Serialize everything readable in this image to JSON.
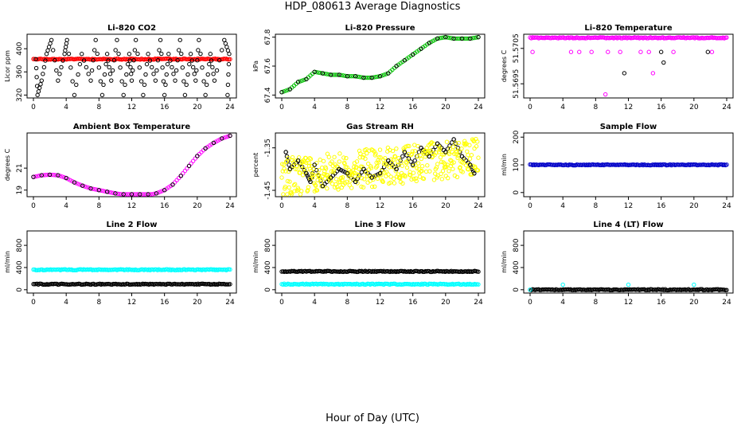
{
  "figure": {
    "title": "HDP_080613  Average Diagnostics",
    "xlabel": "Hour of Day (UTC)"
  },
  "colors": {
    "red": "#ff0000",
    "green": "#00c000",
    "magenta": "#ff00ff",
    "yellow": "#ffff00",
    "blue": "#0000c8",
    "cyan": "#00ffff",
    "black": "#000000"
  },
  "chart_data": [
    {
      "type": "scatter",
      "title": "Li-820 CO2",
      "ylabel": "Licor ppm",
      "xlim": [
        0,
        24
      ],
      "ylim": [
        315,
        425
      ],
      "xticks": [
        "0",
        "4",
        "8",
        "12",
        "16",
        "20",
        "24"
      ],
      "yticks": [
        "320",
        "360",
        "400"
      ],
      "series": [
        {
          "name": "co2",
          "color": "red",
          "values": [
            382
          ]
        },
        {
          "name": "samples",
          "color": "black",
          "values": [
            [
              0.3,
              382
            ],
            [
              0.5,
              320
            ],
            [
              1,
              345
            ],
            [
              1.6,
              391
            ],
            [
              2.2,
              415
            ],
            [
              3.0,
              345
            ],
            [
              3.8,
              391
            ],
            [
              4.1,
              415
            ],
            [
              5,
              320
            ],
            [
              5.9,
              391
            ],
            [
              7,
              345
            ],
            [
              7.6,
              415
            ],
            [
              8.4,
              320
            ],
            [
              9,
              391
            ],
            [
              9.5,
              345
            ],
            [
              10.2,
              415
            ],
            [
              11,
              320
            ],
            [
              11.7,
              391
            ],
            [
              12,
              345
            ],
            [
              12.5,
              415
            ],
            [
              13.4,
              320
            ],
            [
              14,
              391
            ],
            [
              14.9,
              345
            ],
            [
              15.5,
              415
            ],
            [
              16,
              320
            ],
            [
              16.5,
              391
            ],
            [
              17.3,
              345
            ],
            [
              17.9,
              415
            ],
            [
              18.5,
              320
            ],
            [
              19.2,
              391
            ],
            [
              19.8,
              345
            ],
            [
              20.2,
              415
            ],
            [
              21,
              320
            ],
            [
              21.6,
              391
            ],
            [
              22.1,
              345
            ],
            [
              23.3,
              415
            ],
            [
              23.9,
              391
            ],
            [
              23.7,
              320
            ]
          ]
        }
      ]
    },
    {
      "type": "scatter",
      "title": "Li-820 Pressure",
      "ylabel": "kPa",
      "xlim": [
        0,
        24
      ],
      "ylim": [
        67.38,
        67.82
      ],
      "xticks": [
        "0",
        "4",
        "8",
        "12",
        "16",
        "20",
        "24"
      ],
      "yticks": [
        "67.4",
        "67.6",
        "67.8"
      ],
      "series": [
        {
          "name": "pressure",
          "color": "green",
          "values": [
            [
              0,
              67.42
            ],
            [
              1,
              67.44
            ],
            [
              2,
              67.49
            ],
            [
              3,
              67.51
            ],
            [
              4,
              67.56
            ],
            [
              5,
              67.55
            ],
            [
              6,
              67.54
            ],
            [
              7,
              67.54
            ],
            [
              8,
              67.53
            ],
            [
              9,
              67.53
            ],
            [
              10,
              67.52
            ],
            [
              11,
              67.52
            ],
            [
              12,
              67.53
            ],
            [
              13,
              67.55
            ],
            [
              14,
              67.6
            ],
            [
              15,
              67.64
            ],
            [
              16,
              67.68
            ],
            [
              17,
              67.72
            ],
            [
              18,
              67.76
            ],
            [
              19,
              67.79
            ],
            [
              20,
              67.8
            ],
            [
              21,
              67.79
            ],
            [
              22,
              67.79
            ],
            [
              23,
              67.79
            ],
            [
              24,
              67.8
            ]
          ]
        }
      ]
    },
    {
      "type": "scatter",
      "title": "Li-820 Temperature",
      "ylabel": "degrees C",
      "xlim": [
        0,
        24
      ],
      "ylim": [
        51.5691,
        51.5709
      ],
      "xticks": [
        "0",
        "4",
        "8",
        "12",
        "16",
        "20",
        "24"
      ],
      "yticks": [
        "51.5695",
        "51.5705"
      ],
      "series": [
        {
          "name": "temp_high",
          "color": "magenta",
          "values": [
            51.5708
          ]
        },
        {
          "name": "temp_mid",
          "color": "magenta",
          "values": [
            [
              0.3,
              51.5704
            ],
            [
              5,
              51.5704
            ],
            [
              6,
              51.5704
            ],
            [
              7.5,
              51.5704
            ],
            [
              9.5,
              51.5704
            ],
            [
              11,
              51.5704
            ],
            [
              13.5,
              51.5704
            ],
            [
              14.5,
              51.5704
            ],
            [
              17.5,
              51.5704
            ],
            [
              22.2,
              51.5704
            ],
            [
              15,
              51.5698
            ],
            [
              9.2,
              51.5692
            ]
          ]
        },
        {
          "name": "samples",
          "color": "black",
          "values": [
            [
              11.5,
              51.5698
            ],
            [
              16,
              51.5704
            ],
            [
              16.3,
              51.5701
            ],
            [
              21.7,
              51.5704
            ]
          ]
        }
      ]
    },
    {
      "type": "scatter",
      "title": "Ambient Box Temperature",
      "ylabel": "degrees C",
      "xlim": [
        0,
        24
      ],
      "ylim": [
        18.4,
        24.2
      ],
      "xticks": [
        "0",
        "4",
        "8",
        "12",
        "16",
        "20",
        "24"
      ],
      "yticks": [
        "19",
        "21"
      ],
      "series": [
        {
          "name": "box_temp",
          "color": "magenta",
          "values": [
            [
              0,
              20.2
            ],
            [
              1,
              20.35
            ],
            [
              2,
              20.4
            ],
            [
              3,
              20.35
            ],
            [
              4,
              20.1
            ],
            [
              5,
              19.7
            ],
            [
              6,
              19.4
            ],
            [
              7,
              19.15
            ],
            [
              8,
              19
            ],
            [
              9,
              18.85
            ],
            [
              10,
              18.7
            ],
            [
              11,
              18.6
            ],
            [
              12,
              18.55
            ],
            [
              13,
              18.5
            ],
            [
              14,
              18.55
            ],
            [
              15,
              18.7
            ],
            [
              16,
              19
            ],
            [
              17,
              19.5
            ],
            [
              18,
              20.3
            ],
            [
              19,
              21.2
            ],
            [
              20,
              22.1
            ],
            [
              21,
              22.8
            ],
            [
              22,
              23.3
            ],
            [
              23,
              23.7
            ],
            [
              24,
              23.95
            ]
          ]
        }
      ]
    },
    {
      "type": "scatter",
      "title": "Gas Stream RH",
      "ylabel": "percent",
      "xlim": [
        0,
        24
      ],
      "ylim": [
        -1.465,
        -1.315
      ],
      "xticks": [
        "0",
        "4",
        "8",
        "12",
        "16",
        "20",
        "24"
      ],
      "yticks": [
        "-1.45",
        "-1.35"
      ],
      "series": [
        {
          "name": "rh_samples",
          "color": "black",
          "values": [
            [
              0.5,
              -1.36
            ],
            [
              1,
              -1.4
            ],
            [
              2,
              -1.38
            ],
            [
              3,
              -1.41
            ],
            [
              3.5,
              -1.43
            ],
            [
              4,
              -1.39
            ],
            [
              5,
              -1.44
            ],
            [
              6,
              -1.42
            ],
            [
              7,
              -1.4
            ],
            [
              8,
              -1.41
            ],
            [
              9,
              -1.43
            ],
            [
              10,
              -1.4
            ],
            [
              11,
              -1.42
            ],
            [
              12,
              -1.41
            ],
            [
              13,
              -1.38
            ],
            [
              14,
              -1.4
            ],
            [
              15,
              -1.36
            ],
            [
              16,
              -1.39
            ],
            [
              17,
              -1.35
            ],
            [
              18,
              -1.37
            ],
            [
              19,
              -1.34
            ],
            [
              20,
              -1.36
            ],
            [
              21,
              -1.33
            ],
            [
              22,
              -1.37
            ],
            [
              23,
              -1.39
            ],
            [
              23.5,
              -1.41
            ]
          ]
        }
      ]
    },
    {
      "type": "scatter",
      "title": "Sample Flow",
      "ylabel": "ml/min",
      "xlim": [
        0,
        24
      ],
      "ylim": [
        -15,
        215
      ],
      "xticks": [
        "0",
        "4",
        "8",
        "12",
        "16",
        "20",
        "24"
      ],
      "yticks": [
        "0",
        "100",
        "200"
      ],
      "series": [
        {
          "name": "flow",
          "color": "blue",
          "values": [
            100
          ]
        }
      ]
    },
    {
      "type": "scatter",
      "title": "Line 2 Flow",
      "ylabel": "ml/min",
      "xlim": [
        0,
        24
      ],
      "ylim": [
        -60,
        1060
      ],
      "xticks": [
        "0",
        "4",
        "8",
        "12",
        "16",
        "20",
        "24"
      ],
      "yticks": [
        "0",
        "400",
        "800"
      ],
      "series": [
        {
          "name": "high",
          "color": "cyan",
          "values": [
            360
          ]
        },
        {
          "name": "low",
          "color": "black",
          "values": [
            100
          ]
        }
      ]
    },
    {
      "type": "scatter",
      "title": "Line 3 Flow",
      "ylabel": "ml/min",
      "xlim": [
        0,
        24
      ],
      "ylim": [
        -60,
        1060
      ],
      "xticks": [
        "0",
        "4",
        "8",
        "12",
        "16",
        "20",
        "24"
      ],
      "yticks": [
        "0",
        "400",
        "800"
      ],
      "series": [
        {
          "name": "high",
          "color": "black",
          "values": [
            330
          ]
        },
        {
          "name": "low",
          "color": "cyan",
          "values": [
            100
          ]
        }
      ]
    },
    {
      "type": "scatter",
      "title": "Line 4 (LT) Flow",
      "ylabel": "ml/min",
      "xlim": [
        0,
        24
      ],
      "ylim": [
        -60,
        1060
      ],
      "xticks": [
        "0",
        "4",
        "8",
        "12",
        "16",
        "20",
        "24"
      ],
      "yticks": [
        "0",
        "400",
        "800"
      ],
      "series": [
        {
          "name": "base",
          "color": "black",
          "values": [
            0
          ]
        },
        {
          "name": "spikes",
          "color": "cyan",
          "values": [
            [
              0,
              0
            ],
            [
              4,
              90
            ],
            [
              12,
              90
            ],
            [
              20,
              90
            ]
          ]
        }
      ]
    }
  ]
}
